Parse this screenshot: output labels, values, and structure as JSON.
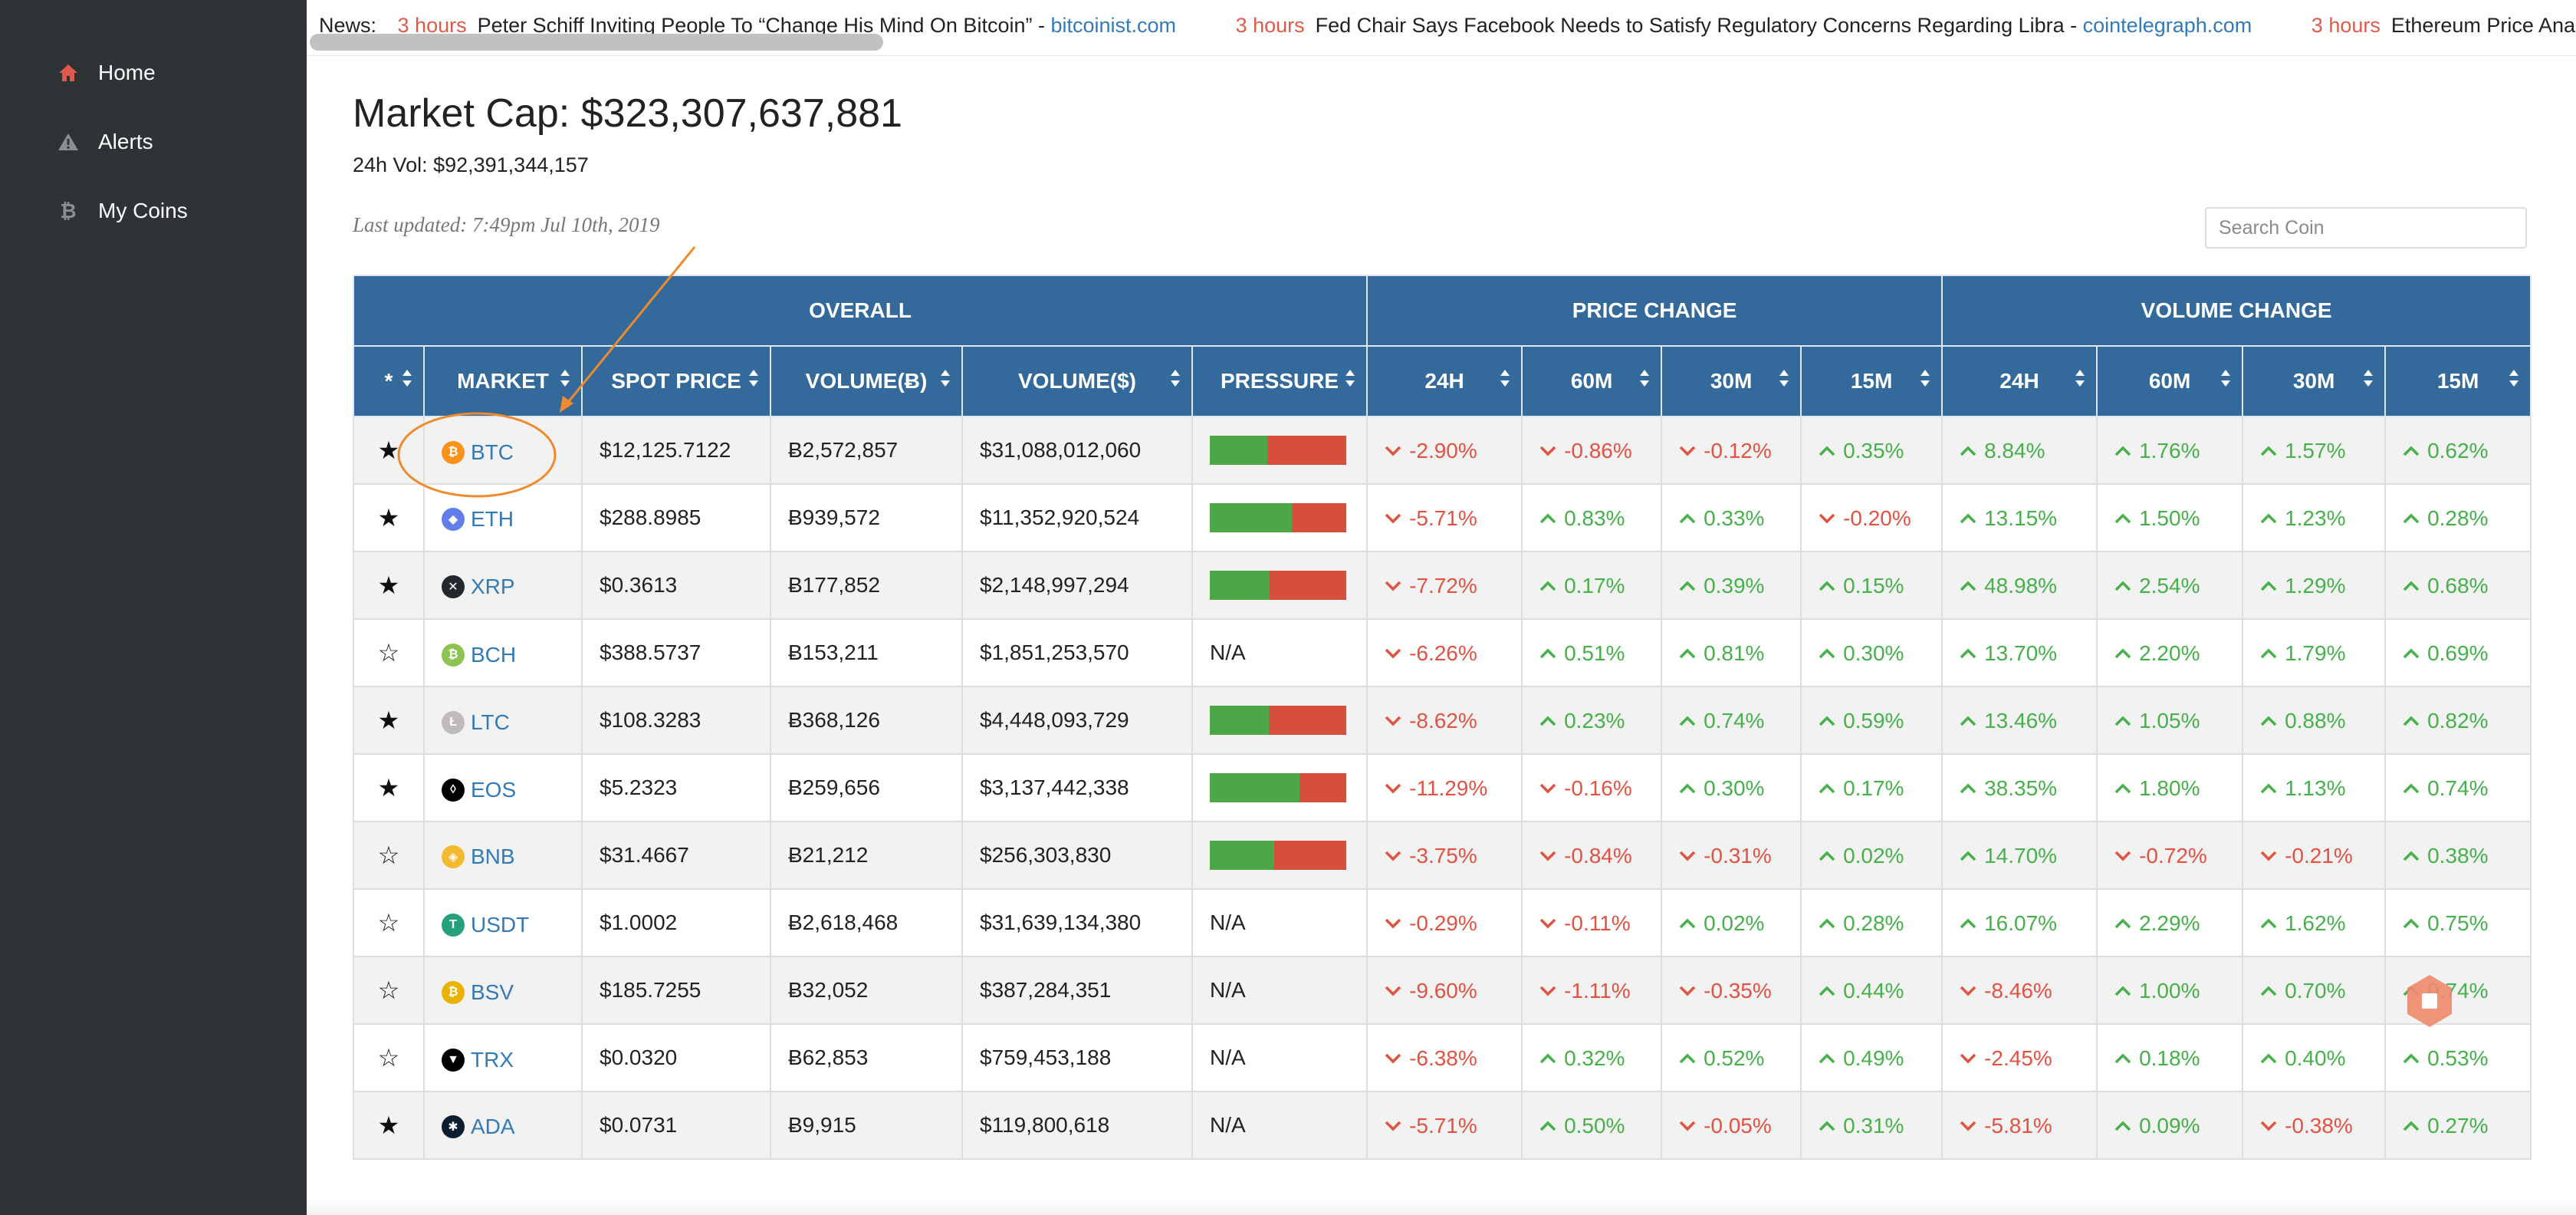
{
  "sidebar": {
    "items": [
      {
        "label": "Home",
        "icon": "home-icon"
      },
      {
        "label": "Alerts",
        "icon": "warning-icon"
      },
      {
        "label": "My Coins",
        "icon": "bitcoin-icon"
      }
    ]
  },
  "ticker": {
    "prefix": "News:",
    "items": [
      {
        "time": "3 hours",
        "title": "Peter Schiff Inviting People To “Change His Mind On Bitcoin” -",
        "source": "bitcoinist.com"
      },
      {
        "time": "3 hours",
        "title": "Fed Chair Says Facebook Needs to Satisfy Regulatory Concerns Regarding Libra -",
        "source": "cointelegraph.com"
      },
      {
        "time": "3 hours",
        "title": "Ethereum Price Analysis",
        "source": ""
      }
    ]
  },
  "header": {
    "market_cap": "Market Cap: $323,307,637,881",
    "volume": "24h Vol: $92,391,344,157",
    "updated": "Last updated: 7:49pm Jul 10th, 2019"
  },
  "search": {
    "placeholder": "Search Coin"
  },
  "table": {
    "groups": [
      "OVERALL",
      "PRICE CHANGE",
      "VOLUME CHANGE"
    ],
    "columns": [
      "*",
      "MARKET",
      "SPOT PRICE",
      "VOLUME(Ƀ)",
      "VOLUME($)",
      "PRESSURE",
      "24H",
      "60M",
      "30M",
      "15M",
      "24H",
      "60M",
      "30M",
      "15M"
    ],
    "rows": [
      {
        "starred": true,
        "market": "BTC",
        "icon_color": "#f7931a",
        "icon_glyph": "₿",
        "price": "$12,125.7122",
        "vol_btc": "Ƀ2,572,857",
        "vol_usd": "$31,088,012,060",
        "pressure": 0.42,
        "pressure_text": "",
        "pc": [
          "-2.90%",
          "-0.86%",
          "-0.12%",
          "0.35%"
        ],
        "vc": [
          "8.84%",
          "1.76%",
          "1.57%",
          "0.62%"
        ]
      },
      {
        "starred": true,
        "market": "ETH",
        "icon_color": "#627eea",
        "icon_glyph": "◆",
        "price": "$288.8985",
        "vol_btc": "Ƀ939,572",
        "vol_usd": "$11,352,920,524",
        "pressure": 0.6,
        "pressure_text": "",
        "pc": [
          "-5.71%",
          "0.83%",
          "0.33%",
          "-0.20%"
        ],
        "vc": [
          "13.15%",
          "1.50%",
          "1.23%",
          "0.28%"
        ]
      },
      {
        "starred": true,
        "market": "XRP",
        "icon_color": "#23292f",
        "icon_glyph": "✕",
        "price": "$0.3613",
        "vol_btc": "Ƀ177,852",
        "vol_usd": "$2,148,997,294",
        "pressure": 0.44,
        "pressure_text": "",
        "pc": [
          "-7.72%",
          "0.17%",
          "0.39%",
          "0.15%"
        ],
        "vc": [
          "48.98%",
          "2.54%",
          "1.29%",
          "0.68%"
        ]
      },
      {
        "starred": false,
        "market": "BCH",
        "icon_color": "#8dc351",
        "icon_glyph": "₿",
        "price": "$388.5737",
        "vol_btc": "Ƀ153,211",
        "vol_usd": "$1,851,253,570",
        "pressure": null,
        "pressure_text": "N/A",
        "pc": [
          "-6.26%",
          "0.51%",
          "0.81%",
          "0.30%"
        ],
        "vc": [
          "13.70%",
          "2.20%",
          "1.79%",
          "0.69%"
        ]
      },
      {
        "starred": true,
        "market": "LTC",
        "icon_color": "#bfbbbb",
        "icon_glyph": "Ł",
        "price": "$108.3283",
        "vol_btc": "Ƀ368,126",
        "vol_usd": "$4,448,093,729",
        "pressure": 0.43,
        "pressure_text": "",
        "pc": [
          "-8.62%",
          "0.23%",
          "0.74%",
          "0.59%"
        ],
        "vc": [
          "13.46%",
          "1.05%",
          "0.88%",
          "0.82%"
        ]
      },
      {
        "starred": true,
        "market": "EOS",
        "icon_color": "#000000",
        "icon_glyph": "◊",
        "price": "$5.2323",
        "vol_btc": "Ƀ259,656",
        "vol_usd": "$3,137,442,338",
        "pressure": 0.66,
        "pressure_text": "",
        "pc": [
          "-11.29%",
          "-0.16%",
          "0.30%",
          "0.17%"
        ],
        "vc": [
          "38.35%",
          "1.80%",
          "1.13%",
          "0.74%"
        ]
      },
      {
        "starred": false,
        "market": "BNB",
        "icon_color": "#f3ba2f",
        "icon_glyph": "◈",
        "price": "$31.4667",
        "vol_btc": "Ƀ21,212",
        "vol_usd": "$256,303,830",
        "pressure": 0.47,
        "pressure_text": "",
        "pc": [
          "-3.75%",
          "-0.84%",
          "-0.31%",
          "0.02%"
        ],
        "vc": [
          "14.70%",
          "-0.72%",
          "-0.21%",
          "0.38%"
        ]
      },
      {
        "starred": false,
        "market": "USDT",
        "icon_color": "#26a17b",
        "icon_glyph": "T",
        "price": "$1.0002",
        "vol_btc": "Ƀ2,618,468",
        "vol_usd": "$31,639,134,380",
        "pressure": null,
        "pressure_text": "N/A",
        "pc": [
          "-0.29%",
          "-0.11%",
          "0.02%",
          "0.28%"
        ],
        "vc": [
          "16.07%",
          "2.29%",
          "1.62%",
          "0.75%"
        ]
      },
      {
        "starred": false,
        "market": "BSV",
        "icon_color": "#eab300",
        "icon_glyph": "₿",
        "price": "$185.7255",
        "vol_btc": "Ƀ32,052",
        "vol_usd": "$387,284,351",
        "pressure": null,
        "pressure_text": "N/A",
        "pc": [
          "-9.60%",
          "-1.11%",
          "-0.35%",
          "0.44%"
        ],
        "vc": [
          "-8.46%",
          "1.00%",
          "0.70%",
          "0.74%"
        ]
      },
      {
        "starred": false,
        "market": "TRX",
        "icon_color": "#000000",
        "icon_glyph": "▼",
        "price": "$0.0320",
        "vol_btc": "Ƀ62,853",
        "vol_usd": "$759,453,188",
        "pressure": null,
        "pressure_text": "N/A",
        "pc": [
          "-6.38%",
          "0.32%",
          "0.52%",
          "0.49%"
        ],
        "vc": [
          "-2.45%",
          "0.18%",
          "0.40%",
          "0.53%"
        ]
      },
      {
        "starred": true,
        "market": "ADA",
        "icon_color": "#0d1e30",
        "icon_glyph": "✱",
        "price": "$0.0731",
        "vol_btc": "Ƀ9,915",
        "vol_usd": "$119,800,618",
        "pressure": null,
        "pressure_text": "N/A",
        "pc": [
          "-5.71%",
          "0.50%",
          "-0.05%",
          "0.31%"
        ],
        "vc": [
          "-5.81%",
          "0.09%",
          "-0.38%",
          "0.27%"
        ]
      }
    ]
  },
  "colors": {
    "sidebar_bg": "#2e3336",
    "header_blue": "#336a9b",
    "up_green": "#46b04a",
    "down_red": "#e25243",
    "link_blue": "#337ab7",
    "annotation_orange": "#ef8b2c"
  }
}
